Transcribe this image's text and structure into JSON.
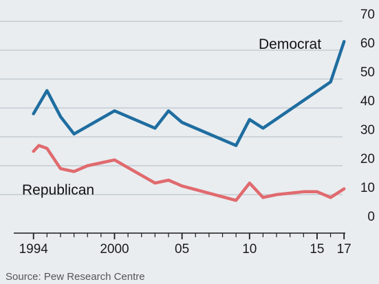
{
  "chart_data": {
    "type": "line",
    "title": "",
    "xlabel": "",
    "ylabel": "",
    "x_tick_labels": [
      "1994",
      "2000",
      "05",
      "10",
      "15",
      "17"
    ],
    "x_ticks": [
      1994,
      2000,
      2005,
      2010,
      2015,
      2017
    ],
    "xlim": [
      1993.2,
      2017.5
    ],
    "y_ticks": [
      0,
      10,
      20,
      30,
      40,
      50,
      60,
      70
    ],
    "ylim": [
      0,
      70
    ],
    "grid": true,
    "y_axis_side": "right",
    "series": [
      {
        "name": "Democrat",
        "color": "#1f6da0",
        "x": [
          1994,
          1995,
          1996,
          1997,
          2000,
          2003,
          2004,
          2005,
          2009,
          2010,
          2011,
          2016,
          2017
        ],
        "y": [
          38,
          46,
          37,
          31,
          39,
          33,
          39,
          35,
          27,
          36,
          33,
          49,
          63
        ]
      },
      {
        "name": "Republican",
        "color": "#e06a6e",
        "x": [
          1994,
          1994.4,
          1995,
          1996,
          1997,
          1998,
          2000,
          2003,
          2004,
          2005,
          2009,
          2010,
          2011,
          2012,
          2014,
          2015,
          2016,
          2017
        ],
        "y": [
          25,
          27,
          26,
          19,
          18,
          20,
          22,
          14,
          15,
          13,
          8,
          14,
          9,
          10,
          11,
          11,
          9,
          12
        ]
      }
    ]
  },
  "labels": {
    "democrat": "Democrat",
    "republican": "Republican",
    "source": "Source: Pew Research Centre"
  },
  "colors": {
    "background": "#e9edf0",
    "grid": "#c4ccd3",
    "axis": "#1a1a1a"
  }
}
